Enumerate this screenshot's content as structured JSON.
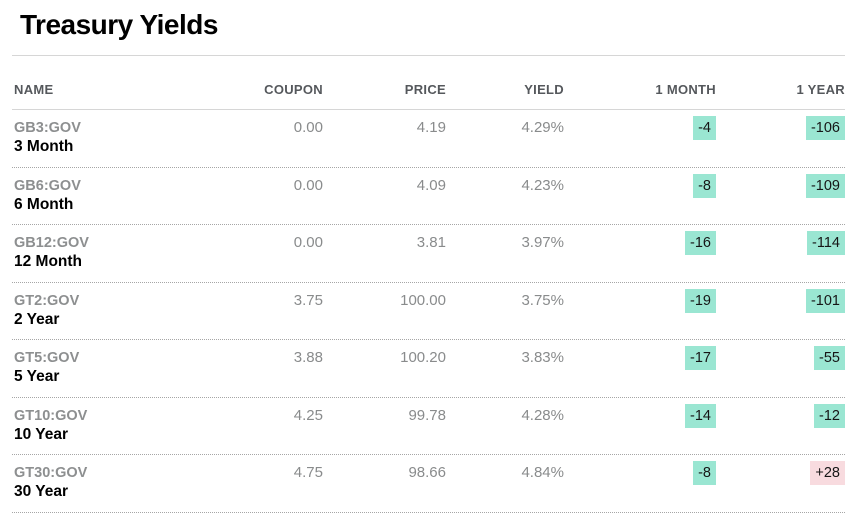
{
  "title": "Treasury Yields",
  "colors": {
    "badge_decrease_bg": "#9ae6d2",
    "badge_increase_bg": "#f8dbdf"
  },
  "table": {
    "columns": [
      "NAME",
      "COUPON",
      "PRICE",
      "YIELD",
      "1 MONTH",
      "1 YEAR"
    ],
    "rows": [
      {
        "ticker": "GB3:GOV",
        "name": "3 Month",
        "coupon": "0.00",
        "price": "4.19",
        "yield": "4.29%",
        "one_month": "-4",
        "one_year": "-106"
      },
      {
        "ticker": "GB6:GOV",
        "name": "6 Month",
        "coupon": "0.00",
        "price": "4.09",
        "yield": "4.23%",
        "one_month": "-8",
        "one_year": "-109"
      },
      {
        "ticker": "GB12:GOV",
        "name": "12 Month",
        "coupon": "0.00",
        "price": "3.81",
        "yield": "3.97%",
        "one_month": "-16",
        "one_year": "-114"
      },
      {
        "ticker": "GT2:GOV",
        "name": "2 Year",
        "coupon": "3.75",
        "price": "100.00",
        "yield": "3.75%",
        "one_month": "-19",
        "one_year": "-101"
      },
      {
        "ticker": "GT5:GOV",
        "name": "5 Year",
        "coupon": "3.88",
        "price": "100.20",
        "yield": "3.83%",
        "one_month": "-17",
        "one_year": "-55"
      },
      {
        "ticker": "GT10:GOV",
        "name": "10 Year",
        "coupon": "4.25",
        "price": "99.78",
        "yield": "4.28%",
        "one_month": "-14",
        "one_year": "-12"
      },
      {
        "ticker": "GT30:GOV",
        "name": "30 Year",
        "coupon": "4.75",
        "price": "98.66",
        "yield": "4.84%",
        "one_month": "-8",
        "one_year": "+28"
      }
    ]
  }
}
